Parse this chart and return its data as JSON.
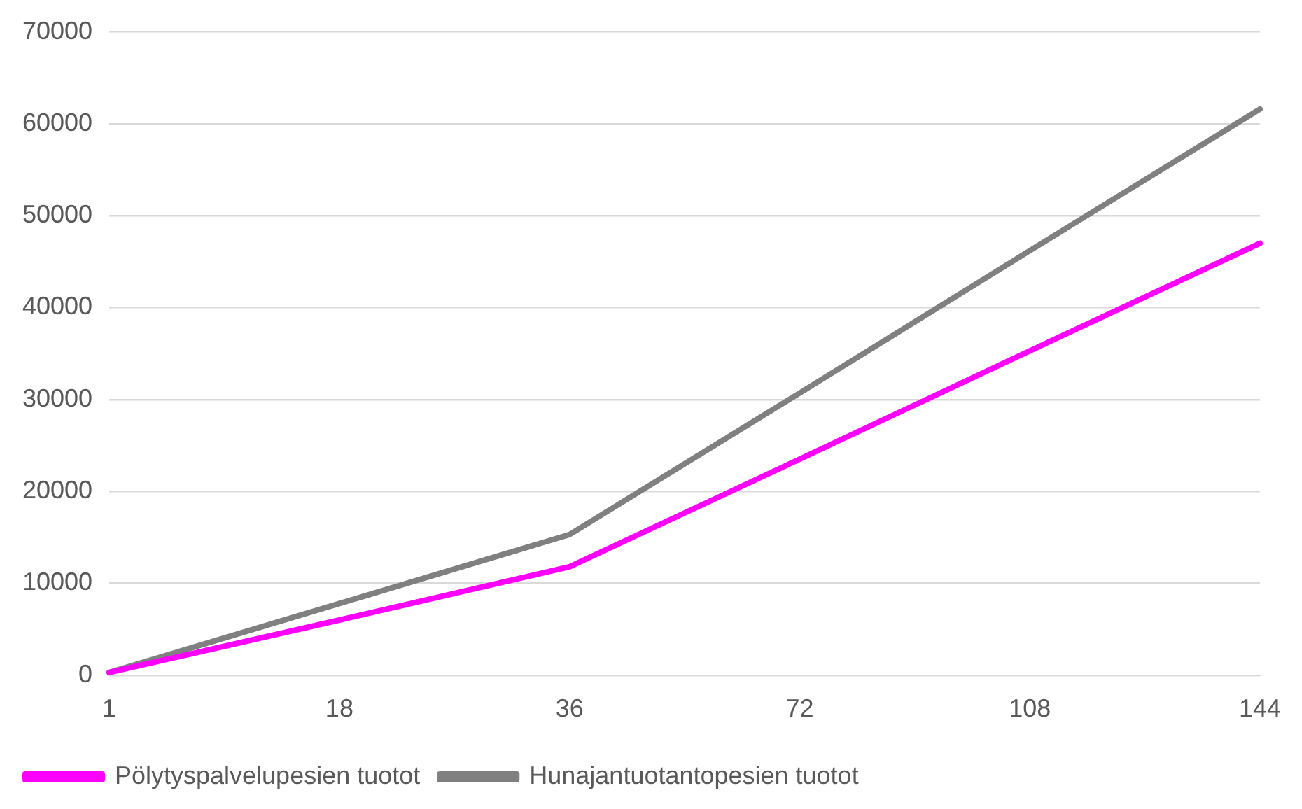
{
  "chart_data": {
    "type": "line",
    "categories": [
      "1",
      "18",
      "36",
      "72",
      "108",
      "144"
    ],
    "series": [
      {
        "name": "Pölytyspalvelupesien tuotot",
        "color": "#ff00ff",
        "values": [
          300,
          6000,
          11800,
          23500,
          35300,
          47000
        ]
      },
      {
        "name": "Hunajantuotantopesien tuotot",
        "color": "#808080",
        "values": [
          300,
          7800,
          15300,
          30700,
          46200,
          61600
        ]
      }
    ],
    "ylim": [
      0,
      70000
    ],
    "yticks": [
      0,
      10000,
      20000,
      30000,
      40000,
      50000,
      60000,
      70000
    ],
    "grid": "y",
    "legend": "bottom",
    "marker": "none",
    "line_style": "solid"
  }
}
